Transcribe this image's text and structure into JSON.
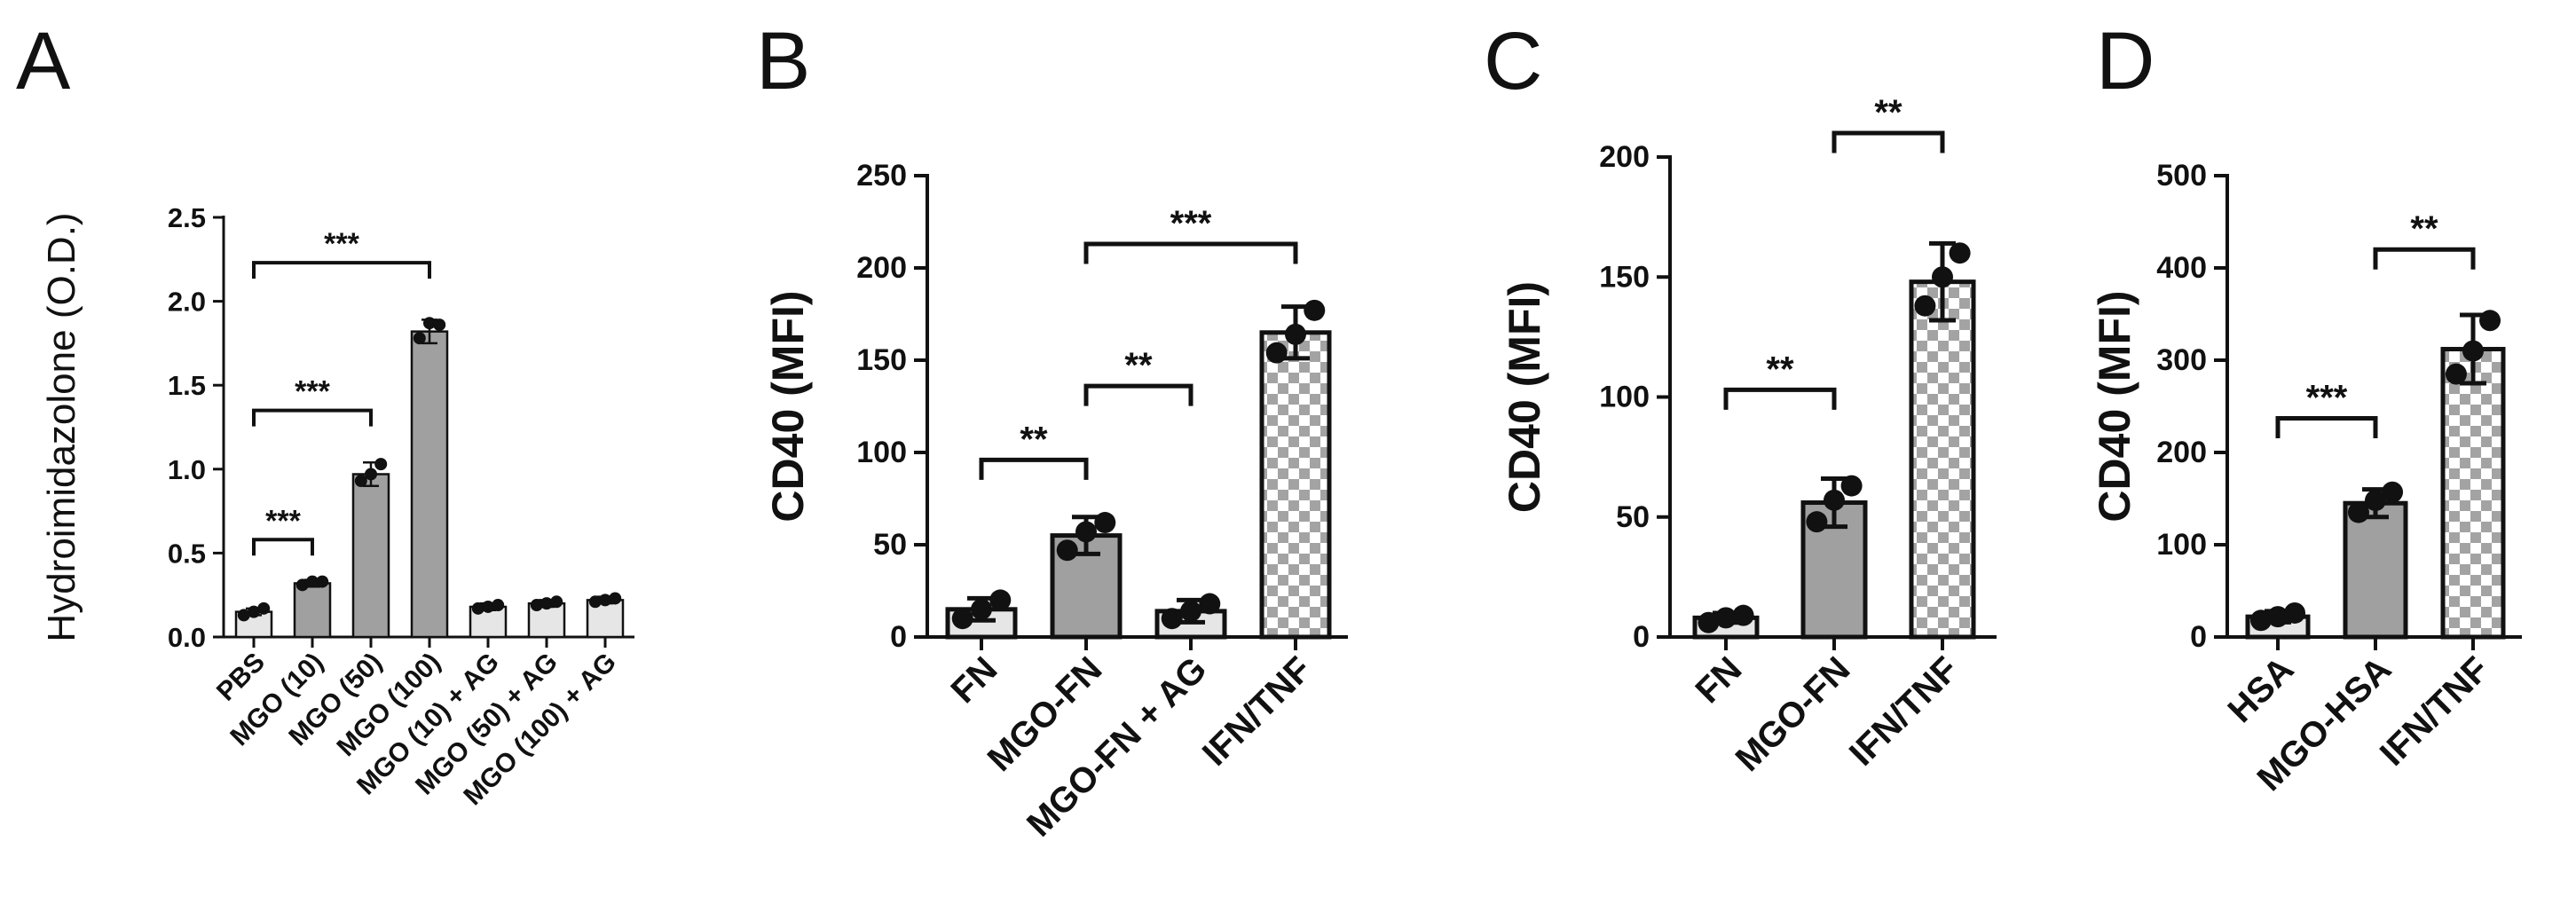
{
  "chart_data": [
    {
      "panel": "A",
      "type": "bar",
      "ylabel": "Hydroimidazolone (O.D.)",
      "ylim": [
        0,
        2.5
      ],
      "yticks": [
        0,
        0.5,
        1.0,
        1.5,
        2.0,
        2.5
      ],
      "ytick_labels": [
        "0.0",
        "0.5",
        "1.0",
        "1.5",
        "2.0",
        "2.5"
      ],
      "categories": [
        "PBS",
        "MGO (10)",
        "MGO (50)",
        "MGO (100)",
        "MGO (10) + AG",
        "MGO (50) + AG",
        "MGO (100) + AG"
      ],
      "values": [
        0.15,
        0.32,
        0.97,
        1.82,
        0.18,
        0.2,
        0.22
      ],
      "errors": [
        0.02,
        0.02,
        0.07,
        0.07,
        0.02,
        0.02,
        0.02
      ],
      "points": [
        [
          0.13,
          0.15,
          0.17
        ],
        [
          0.31,
          0.33,
          0.33
        ],
        [
          0.93,
          0.97,
          1.03
        ],
        [
          1.78,
          1.87,
          1.86
        ],
        [
          0.17,
          0.18,
          0.19
        ],
        [
          0.19,
          0.2,
          0.21
        ],
        [
          0.21,
          0.22,
          0.23
        ]
      ],
      "bar_fills": [
        "#e6e6e6",
        "#a0a0a0",
        "#a0a0a0",
        "#a0a0a0",
        "#e6e6e6",
        "#e6e6e6",
        "#e6e6e6"
      ],
      "bar_patterns": [
        "solid",
        "solid",
        "solid",
        "solid",
        "solid",
        "solid",
        "solid"
      ],
      "significance": [
        {
          "from": 0,
          "to": 1,
          "y": 0.58,
          "label": "***"
        },
        {
          "from": 0,
          "to": 2,
          "y": 1.35,
          "label": "***"
        },
        {
          "from": 0,
          "to": 3,
          "y": 2.23,
          "label": "***"
        }
      ]
    },
    {
      "panel": "B",
      "type": "bar",
      "ylabel": "CD40 (MFI)",
      "ylim": [
        0,
        250
      ],
      "yticks": [
        0,
        50,
        100,
        150,
        200,
        250
      ],
      "ytick_labels": [
        "0",
        "50",
        "100",
        "150",
        "200",
        "250"
      ],
      "categories": [
        "FN",
        "MGO-FN",
        "MGO-FN + AG",
        "IFN/TNF"
      ],
      "values": [
        15,
        55,
        14,
        165
      ],
      "errors": [
        6,
        10,
        6,
        14
      ],
      "points": [
        [
          10,
          15,
          20
        ],
        [
          47,
          57,
          62
        ],
        [
          10,
          14,
          18
        ],
        [
          154,
          164,
          177
        ]
      ],
      "bar_fills": [
        "#e6e6e6",
        "#a0a0a0",
        "#e6e6e6",
        "#ffffff"
      ],
      "bar_patterns": [
        "solid",
        "solid",
        "solid",
        "checker"
      ],
      "significance": [
        {
          "from": 0,
          "to": 1,
          "y": 96,
          "label": "**"
        },
        {
          "from": 1,
          "to": 2,
          "y": 136,
          "label": "**"
        },
        {
          "from": 1,
          "to": 3,
          "y": 213,
          "label": "***"
        }
      ]
    },
    {
      "panel": "C",
      "type": "bar",
      "ylabel": "CD40 (MFI)",
      "ylim": [
        0,
        200
      ],
      "yticks": [
        0,
        50,
        100,
        150,
        200
      ],
      "ytick_labels": [
        "0",
        "50",
        "100",
        "150",
        "200"
      ],
      "categories": [
        "FN",
        "MGO-FN",
        "IFN/TNF"
      ],
      "values": [
        8,
        56,
        148
      ],
      "errors": [
        2,
        10,
        16
      ],
      "points": [
        [
          6,
          8,
          9
        ],
        [
          48,
          57,
          63
        ],
        [
          138,
          150,
          160
        ]
      ],
      "bar_fills": [
        "#e6e6e6",
        "#a0a0a0",
        "#ffffff"
      ],
      "bar_patterns": [
        "solid",
        "solid",
        "checker"
      ],
      "significance": [
        {
          "from": 0,
          "to": 1,
          "y": 103,
          "label": "**"
        },
        {
          "from": 1,
          "to": 2,
          "y": 210,
          "label": "**"
        }
      ]
    },
    {
      "panel": "D",
      "type": "bar",
      "ylabel": "CD40 (MFI)",
      "ylim": [
        0,
        500
      ],
      "yticks": [
        0,
        100,
        200,
        300,
        400,
        500
      ],
      "ytick_labels": [
        "0",
        "100",
        "200",
        "300",
        "400",
        "500"
      ],
      "categories": [
        "HSA",
        "MGO-HSA",
        "IFN/TNF"
      ],
      "values": [
        22,
        145,
        312
      ],
      "errors": [
        6,
        15,
        37
      ],
      "points": [
        [
          18,
          22,
          26
        ],
        [
          135,
          148,
          157
        ],
        [
          285,
          310,
          343
        ]
      ],
      "bar_fills": [
        "#e6e6e6",
        "#a0a0a0",
        "#ffffff"
      ],
      "bar_patterns": [
        "solid",
        "solid",
        "checker"
      ],
      "significance": [
        {
          "from": 0,
          "to": 1,
          "y": 237,
          "label": "***"
        },
        {
          "from": 1,
          "to": 2,
          "y": 420,
          "label": "**"
        }
      ]
    }
  ]
}
